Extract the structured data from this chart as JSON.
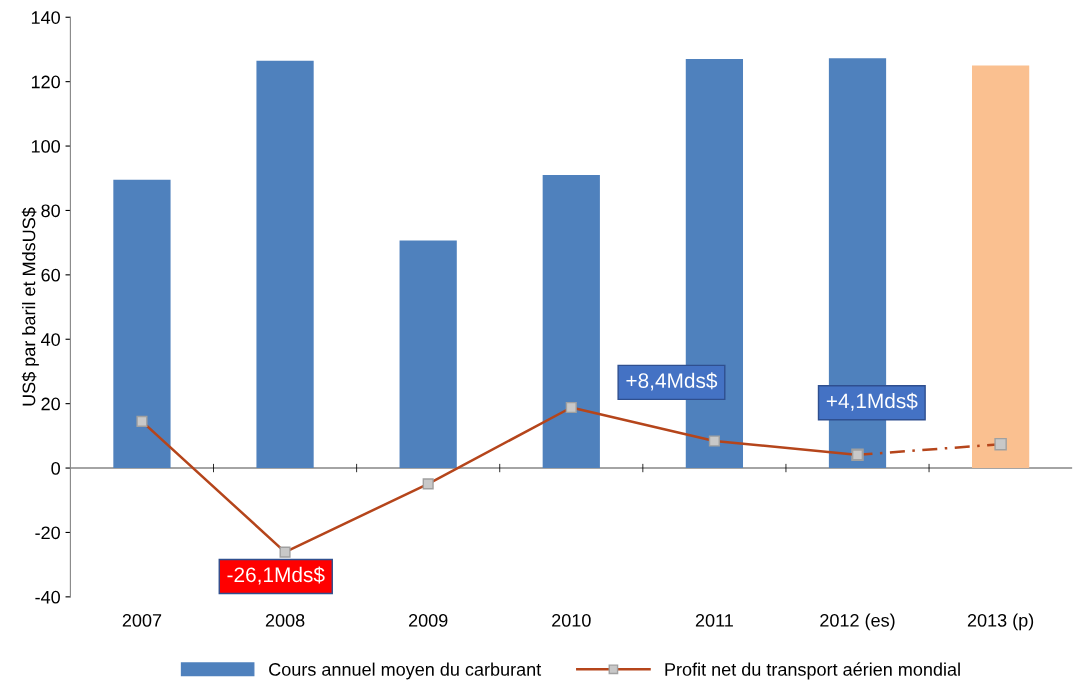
{
  "chart_data": {
    "type": "bar",
    "ylabel": "US$ par baril et MdsUS$",
    "categories": [
      "2007",
      "2008",
      "2009",
      "2010",
      "2011",
      "2012 (es)",
      "2013 (p)"
    ],
    "series": [
      {
        "name": "Cours annuel moyen du carburant",
        "color": "#4f81bd",
        "colors": [
          "#4f81bd",
          "#4f81bd",
          "#4f81bd",
          "#4f81bd",
          "#4f81bd",
          "#4f81bd",
          "#fac090"
        ],
        "values": [
          89.5,
          126.5,
          70.7,
          91,
          127,
          127.3,
          125
        ]
      },
      {
        "name": "Profit net du transport aérien mondial",
        "type": "line",
        "color": "#b5451b",
        "marker": "square",
        "line_style": "solid",
        "values": [
          14.5,
          -26.1,
          -4.9,
          18.8,
          8.4,
          4.1,
          null
        ]
      },
      {
        "type": "line",
        "color": "#b5451b",
        "marker": "square",
        "line_style": "dashed",
        "values": [
          null,
          null,
          null,
          null,
          null,
          4.1,
          7.4
        ]
      }
    ],
    "ylim": [
      -40,
      140
    ],
    "yticks": [
      -40,
      -20,
      0,
      20,
      40,
      60,
      80,
      100,
      120,
      140
    ],
    "annotations": [
      "-26,1Mds$",
      "+8,4Mds$",
      "+4,1Mds$"
    ],
    "ref_lines": [
      {
        "axis": "y",
        "value": 0,
        "color": "#868686"
      }
    ],
    "grid": false,
    "legend": "bottom"
  }
}
